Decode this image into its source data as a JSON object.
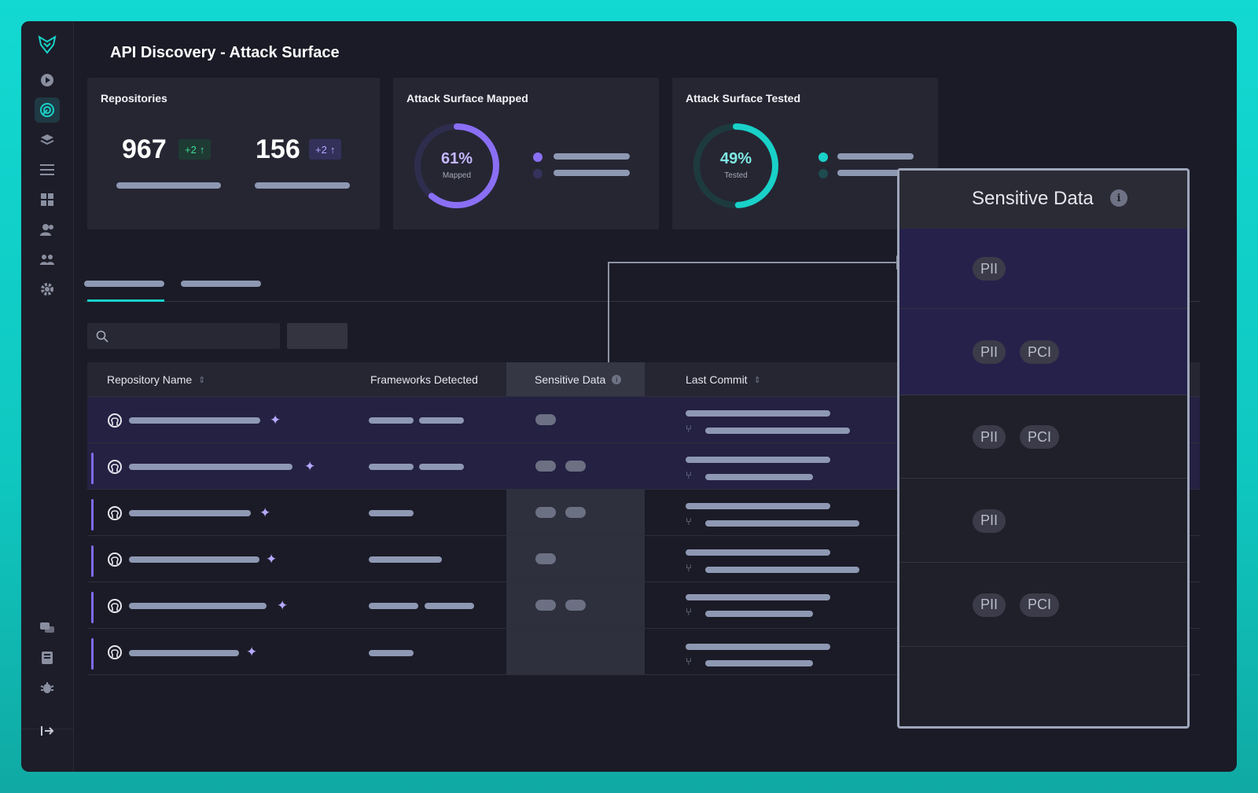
{
  "page": {
    "title": "API Discovery - Attack Surface"
  },
  "sidebar": {
    "icons": [
      "logo-icon",
      "play-icon",
      "radar-icon",
      "layers-icon",
      "list-icon",
      "grid-icon",
      "user-icon",
      "users-icon",
      "gear-icon",
      "chat-icon",
      "book-icon",
      "bug-icon",
      "logout-icon"
    ],
    "active": "radar-icon"
  },
  "cards": {
    "repositories": {
      "title": "Repositories",
      "stat1": "967",
      "delta1": "+2",
      "stat2": "156",
      "delta2": "+2"
    },
    "mapped": {
      "title": "Attack Surface Mapped",
      "percent": "61%",
      "sub": "Mapped",
      "value": 0.61,
      "color": "#8a6ff5"
    },
    "tested": {
      "title": "Attack Surface Tested",
      "percent": "49%",
      "sub": "Tested",
      "value": 0.49,
      "color": "#19d1c8"
    }
  },
  "search": {
    "placeholder": ""
  },
  "table": {
    "headers": {
      "repo": "Repository Name",
      "frameworks": "Frameworks Detected",
      "sensitive": "Sensitive Data",
      "commit": "Last Commit"
    }
  },
  "panel": {
    "title": "Sensitive Data",
    "info": "i",
    "rows": [
      [
        "PII"
      ],
      [
        "PII",
        "PCI"
      ],
      [
        "PII",
        "PCI"
      ],
      [
        "PII"
      ],
      [
        "PII",
        "PCI"
      ],
      []
    ]
  },
  "colors": {
    "accent": "#19d1c8",
    "purple": "#8a6ff5"
  }
}
